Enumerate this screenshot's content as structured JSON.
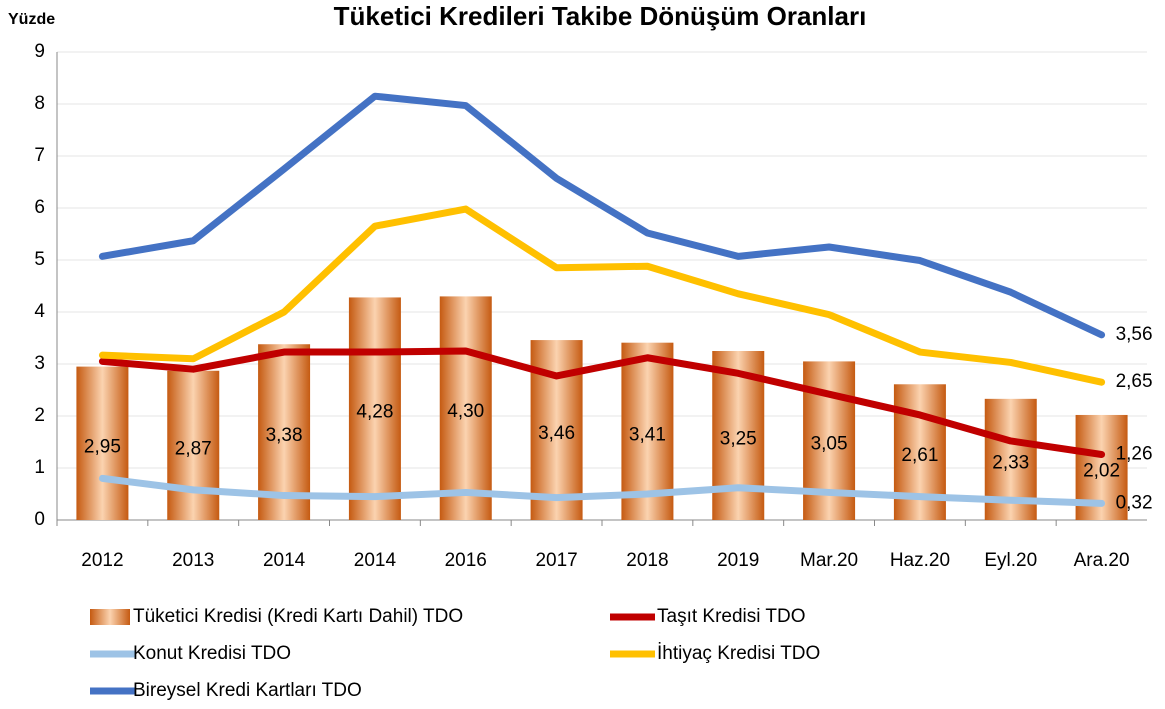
{
  "chart_data": {
    "type": "bar",
    "title": "Tüketici Kredileri Takibe Dönüşüm Oranları",
    "y_label": "Yüzde",
    "categories": [
      "2012",
      "2013",
      "2014",
      "2014",
      "2016",
      "2017",
      "2018",
      "2019",
      "Mar.20",
      "Haz.20",
      "Eyl.20",
      "Ara.20"
    ],
    "ylim": [
      0,
      9
    ],
    "yticks": [
      0,
      1,
      2,
      3,
      4,
      5,
      6,
      7,
      8,
      9
    ],
    "grid": true,
    "series": [
      {
        "name": "Tüketici Kredisi (Kredi Kartı Dahil) TDO",
        "type": "bar",
        "color": "#ed7d31",
        "values": [
          2.95,
          2.87,
          3.38,
          4.28,
          4.3,
          3.46,
          3.41,
          3.25,
          3.05,
          2.61,
          2.33,
          2.02
        ],
        "value_labels": [
          "2,95",
          "2,87",
          "3,38",
          "4,28",
          "4,30",
          "3,46",
          "3,41",
          "3,25",
          "3,05",
          "2,61",
          "2,33",
          "2,02"
        ]
      },
      {
        "name": "Taşıt Kredisi TDO",
        "type": "line",
        "color": "#c00000",
        "values": [
          3.05,
          2.9,
          3.23,
          3.23,
          3.25,
          2.77,
          3.12,
          2.82,
          2.42,
          2.02,
          1.52,
          1.26
        ],
        "value_labels": [
          null,
          null,
          null,
          null,
          null,
          null,
          null,
          null,
          null,
          null,
          null,
          "1,26"
        ]
      },
      {
        "name": "Konut Kredisi TDO",
        "type": "line",
        "color": "#9dc3e6",
        "values": [
          0.8,
          0.58,
          0.47,
          0.45,
          0.53,
          0.43,
          0.5,
          0.62,
          0.53,
          0.45,
          0.38,
          0.32
        ],
        "value_labels": [
          null,
          null,
          null,
          null,
          null,
          null,
          null,
          null,
          null,
          null,
          null,
          "0,32"
        ]
      },
      {
        "name": "İhtiyaç Kredisi TDO",
        "type": "line",
        "color": "#ffc000",
        "values": [
          3.17,
          3.1,
          4.0,
          5.65,
          5.98,
          4.85,
          4.88,
          4.35,
          3.95,
          3.23,
          3.03,
          2.65
        ],
        "value_labels": [
          null,
          null,
          null,
          null,
          null,
          null,
          null,
          null,
          null,
          null,
          null,
          "2,65"
        ]
      },
      {
        "name": "Bireysel Kredi Kartları TDO",
        "type": "line",
        "color": "#4472c4",
        "values": [
          5.07,
          5.37,
          6.75,
          8.15,
          7.97,
          6.57,
          5.52,
          5.07,
          5.25,
          4.99,
          4.38,
          3.56
        ],
        "value_labels": [
          null,
          null,
          null,
          null,
          null,
          null,
          null,
          null,
          null,
          null,
          null,
          "3,56"
        ]
      }
    ]
  }
}
